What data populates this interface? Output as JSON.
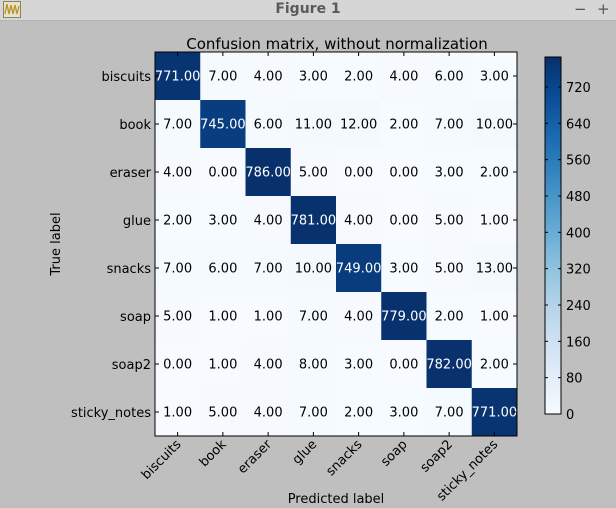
{
  "window": {
    "title": "Figure 1",
    "minimize_glyph": "−",
    "maximize_glyph": "+"
  },
  "chart_data": {
    "type": "heatmap",
    "title": "Confusion matrix, without normalization",
    "xlabel": "Predicted label",
    "ylabel": "True label",
    "row_labels": [
      "biscuits",
      "book",
      "eraser",
      "glue",
      "snacks",
      "soap",
      "soap2",
      "sticky_notes"
    ],
    "col_labels": [
      "biscuits",
      "book",
      "eraser",
      "glue",
      "snacks",
      "soap",
      "soap2",
      "sticky_notes"
    ],
    "values": [
      [
        771,
        7,
        4,
        3,
        2,
        4,
        6,
        3
      ],
      [
        7,
        745,
        6,
        11,
        12,
        2,
        7,
        10
      ],
      [
        4,
        0,
        786,
        5,
        0,
        0,
        3,
        2
      ],
      [
        2,
        3,
        4,
        781,
        4,
        0,
        5,
        1
      ],
      [
        7,
        6,
        7,
        10,
        749,
        3,
        5,
        13
      ],
      [
        5,
        1,
        1,
        7,
        4,
        779,
        2,
        1
      ],
      [
        0,
        1,
        4,
        8,
        3,
        0,
        782,
        2
      ],
      [
        1,
        5,
        4,
        7,
        2,
        3,
        7,
        771
      ]
    ],
    "value_format": "2 decimals",
    "colormap": "Blues",
    "colorbar": {
      "min": 0,
      "max": 786,
      "ticks": [
        0,
        80,
        160,
        240,
        320,
        400,
        480,
        560,
        640,
        720
      ]
    },
    "grid": false
  }
}
